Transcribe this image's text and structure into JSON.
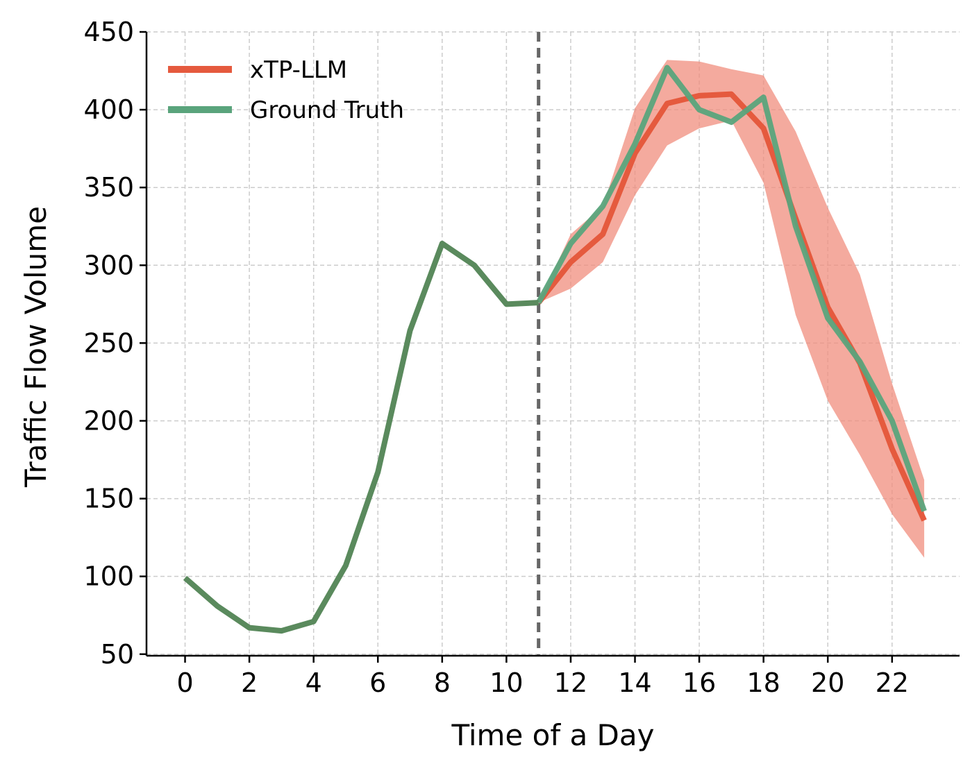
{
  "chart_data": {
    "type": "line",
    "title": "",
    "xlabel": "Time of a Day",
    "ylabel": "Traffic Flow Volume",
    "xlim": [
      -1.2,
      24.1
    ],
    "ylim": [
      49,
      450
    ],
    "x_ticks": [
      0,
      2,
      4,
      6,
      8,
      10,
      12,
      14,
      16,
      18,
      20,
      22
    ],
    "x_tick_labels": [
      "0",
      "2",
      "4",
      "6",
      "8",
      "10",
      "12",
      "14",
      "16",
      "18",
      "20",
      "22"
    ],
    "y_ticks": [
      50,
      100,
      150,
      200,
      250,
      300,
      350,
      400,
      450
    ],
    "y_tick_labels": [
      "50",
      "100",
      "150",
      "200",
      "250",
      "300",
      "350",
      "400",
      "450"
    ],
    "grid": true,
    "legend_position": "top-left",
    "vertical_marker": {
      "x": 11,
      "style": "dashed",
      "color": "#666666"
    },
    "series": [
      {
        "name": "xTP-LLM",
        "color": "#e55a3e",
        "band_color": "#f08d7e",
        "x": [
          11,
          12,
          13,
          14,
          15,
          16,
          17,
          18,
          19,
          20,
          21,
          22,
          23
        ],
        "values": [
          276,
          302,
          320,
          372,
          404,
          409,
          410,
          388,
          330,
          273,
          237,
          182,
          136
        ],
        "lower": [
          276,
          285,
          302,
          345,
          377,
          388,
          393,
          353,
          268,
          213,
          178,
          140,
          112
        ],
        "upper": [
          276,
          320,
          338,
          401,
          432,
          431,
          426,
          422,
          386,
          337,
          294,
          224,
          162
        ]
      },
      {
        "name": "Ground Truth",
        "color": "#5aa47c",
        "x": [
          0,
          1,
          2,
          3,
          4,
          5,
          6,
          7,
          8,
          9,
          10,
          11,
          12,
          13,
          14,
          15,
          16,
          17,
          18,
          19,
          20,
          21,
          22,
          23
        ],
        "values": [
          99,
          81,
          67,
          65,
          71,
          107,
          167,
          258,
          314,
          300,
          275,
          276,
          314,
          338,
          378,
          427,
          400,
          392,
          408,
          325,
          266,
          238,
          200,
          142
        ]
      }
    ],
    "history_color": "#5a8a5d"
  }
}
